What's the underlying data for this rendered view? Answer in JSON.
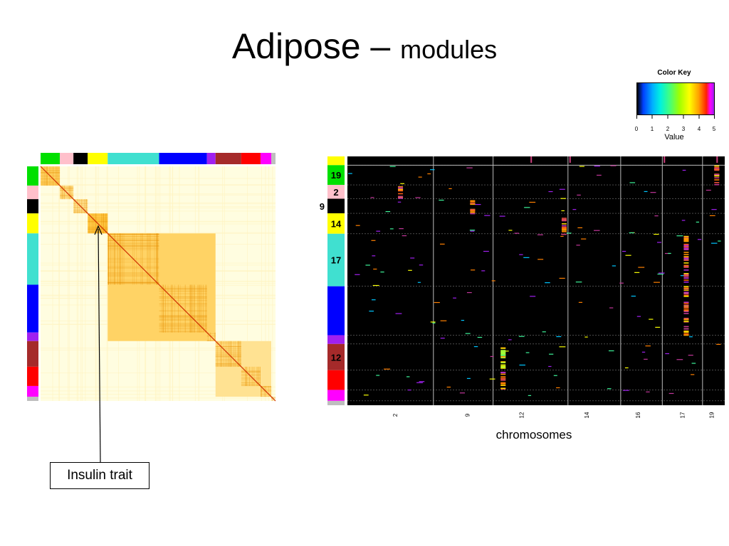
{
  "slide": {
    "title_main": "Adipose –",
    "title_sub": "modules"
  },
  "color_key": {
    "title": "Color Key",
    "label": "Value",
    "ticks": [
      "0",
      "1",
      "2",
      "3",
      "4",
      "5"
    ]
  },
  "annotation": {
    "text": "Insulin trait"
  },
  "colors": {
    "background": "#ffffff",
    "heatmap_base": "#fffde0",
    "heatmap_high": "#ffb000",
    "diagonal": "#d03000",
    "right_background": "#000000"
  },
  "chart_data": [
    {
      "type": "heatmap",
      "title": "",
      "xlabel": "",
      "ylabel": "",
      "module_colors": [
        "#00e000",
        "#ffc0cb",
        "#000000",
        "#ffff00",
        "#40e0d0",
        "#0000ff",
        "#a020f0",
        "#a52a2a",
        "#ff0000",
        "#ff00ff",
        "#bebebe"
      ],
      "module_sizes": [
        27,
        19,
        20,
        28,
        72,
        67,
        12,
        36,
        27,
        15,
        6
      ],
      "module_correlation_level": [
        0.55,
        0.4,
        0.35,
        0.7,
        0.55,
        0.55,
        0.5,
        0.45,
        0.45,
        0.45,
        0.1
      ],
      "linked_blocks": [
        [
          4,
          6,
          0.55
        ],
        [
          7,
          9,
          0.35
        ]
      ],
      "highlighted_module": "yellow"
    },
    {
      "type": "heatmap",
      "title": "",
      "xlabel": "chromosomes",
      "ylabel": "",
      "value_range": [
        0,
        5
      ],
      "module_colors": [
        "#ffff00",
        "#00e000",
        "#ffc0cb",
        "#000000",
        "#ffff00",
        "#40e0d0",
        "#0000ff",
        "#a020f0",
        "#a52a2a",
        "#ff0000",
        "#ff00ff",
        "#bebebe"
      ],
      "module_sizes": [
        12,
        27,
        19,
        20,
        28,
        72,
        67,
        12,
        36,
        27,
        15,
        6
      ],
      "module_labels": [
        {
          "label": "19",
          "module": 1
        },
        {
          "label": "2",
          "module": 2
        },
        {
          "label": "9",
          "module": 3
        },
        {
          "label": "14",
          "module": 4
        },
        {
          "label": "17",
          "module": 5
        },
        {
          "label": "12",
          "module": 8
        }
      ],
      "chromosome_ticks": [
        "2",
        "9",
        "12",
        "14",
        "16",
        "17",
        "19"
      ],
      "chromosome_tick_positions": [
        0.18,
        0.44,
        0.635,
        0.87,
        1.055,
        1.215,
        1.32
      ],
      "chromosome_boundaries": [
        0.31,
        0.525,
        0.795,
        0.985,
        1.135,
        1.28
      ],
      "hotspots": [
        {
          "x": 0.19,
          "module": 2,
          "value": 5
        },
        {
          "x": 0.45,
          "module": 3,
          "value": 5
        },
        {
          "x": 0.78,
          "module": 4,
          "value": 5
        },
        {
          "x": 0.56,
          "module": 8,
          "value": 4
        },
        {
          "x": 0.56,
          "module": 9,
          "value": 5
        },
        {
          "x": 1.22,
          "module": 5,
          "value": 5
        },
        {
          "x": 1.22,
          "module": 6,
          "value": 5
        },
        {
          "x": 1.33,
          "module": 1,
          "value": 5
        }
      ]
    }
  ]
}
